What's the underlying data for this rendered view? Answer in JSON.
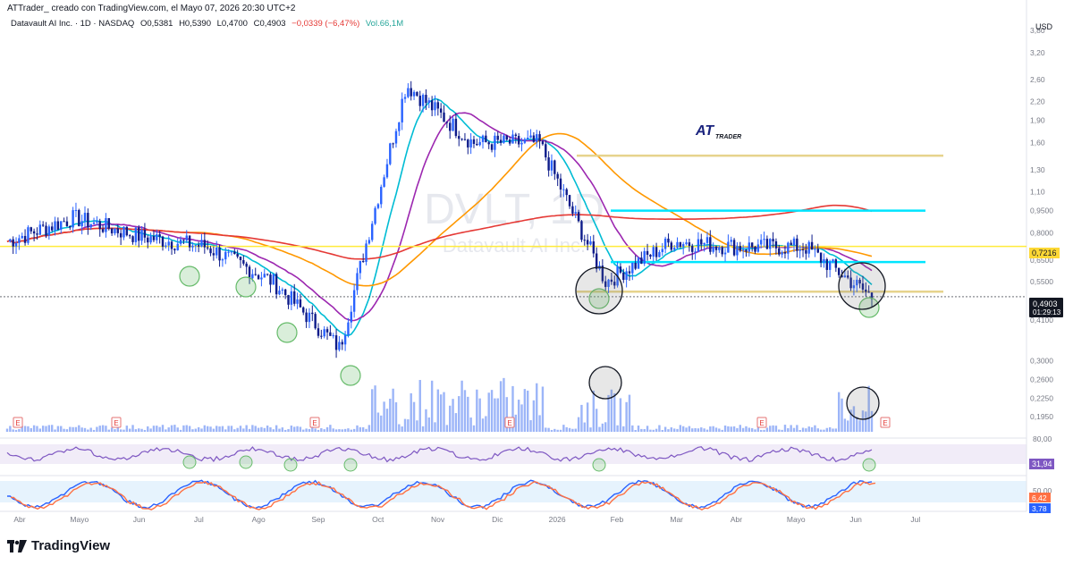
{
  "header": {
    "title": "ATTrader_ creado con TradingView.com, el Mayo 07, 2026 20:30 UTC+2"
  },
  "symbol_bar": {
    "name": "Datavault AI Inc. · 1D · NASDAQ",
    "open": "O0,5381",
    "high": "H0,5390",
    "low": "L0,4700",
    "close": "C0,4903",
    "change": "−0,0339 (−6,47%)",
    "volume": "Vol.66,1M"
  },
  "watermark": {
    "ticker": "DVLT, 1D",
    "company": "Datavault AI Inc."
  },
  "logo": {
    "brand": "AT",
    "sub": "TRADER"
  },
  "colors": {
    "up": "#2962ff",
    "down": "#0d1b8a",
    "ma_short": "#00bcd4",
    "ma_mid": "#9c27b0",
    "ma_long": "#ff9800",
    "ma_200": "#e53935",
    "support_yellow": "#ffeb3b",
    "level_cyan": "#00e5ff",
    "level_tan": "#e6d38c",
    "green_circle": "#66bb6a"
  },
  "price_axis": {
    "currency": "USD",
    "ticks": [
      "3,80",
      "3,20",
      "2,60",
      "2,20",
      "1,90",
      "1,60",
      "1,30",
      "1,10",
      "0,9500",
      "0,8000",
      "0,6500",
      "0,5500",
      "0,4500",
      "0,4100",
      "0,3000",
      "0,2600",
      "0,2250",
      "0,1950"
    ],
    "current_price": "0,4903",
    "countdown": "01:29:13",
    "marker_ma": "0,7216"
  },
  "rsi_axis": {
    "ticks": [
      "80,00"
    ],
    "value": "31,94"
  },
  "stoch_axis": {
    "ticks": [
      "50,00"
    ],
    "k": "6,42",
    "d": "3,78"
  },
  "time_axis": {
    "labels": [
      "Abr",
      "Mayo",
      "Jun",
      "Jul",
      "Ago",
      "Sep",
      "Oct",
      "Nov",
      "Dic",
      "2026",
      "Feb",
      "Mar",
      "Abr",
      "Mayo",
      "Jun",
      "Jul"
    ]
  },
  "earnings_marker": "E",
  "footer": {
    "brand": "TradingView"
  },
  "chart_data": {
    "type": "candlestick",
    "title": "Datavault AI Inc. · 1D · NASDAQ",
    "xlabel": "",
    "ylabel": "USD",
    "scale": "log",
    "x_range": [
      "2025-04",
      "2026-07"
    ],
    "ylim": [
      0.19,
      3.9
    ],
    "series": [
      {
        "name": "close_approx",
        "x": [
          "2025-04",
          "2025-05",
          "2025-06",
          "2025-07",
          "2025-08",
          "2025-09",
          "2025-10",
          "2025-11",
          "2025-12",
          "2026-01",
          "2026-02",
          "2026-03",
          "2026-04",
          "2026-05"
        ],
        "values": [
          0.75,
          0.9,
          0.78,
          0.72,
          0.55,
          0.33,
          2.5,
          1.6,
          1.6,
          0.55,
          0.75,
          0.72,
          0.72,
          0.49
        ]
      }
    ],
    "horizontal_levels": [
      0.7216,
      1.45,
      0.95,
      0.64,
      0.51
    ],
    "indicators": [
      "MA short",
      "MA mid",
      "MA long",
      "MA 200",
      "Volume",
      "RSI",
      "Stochastic"
    ],
    "grid": false
  }
}
